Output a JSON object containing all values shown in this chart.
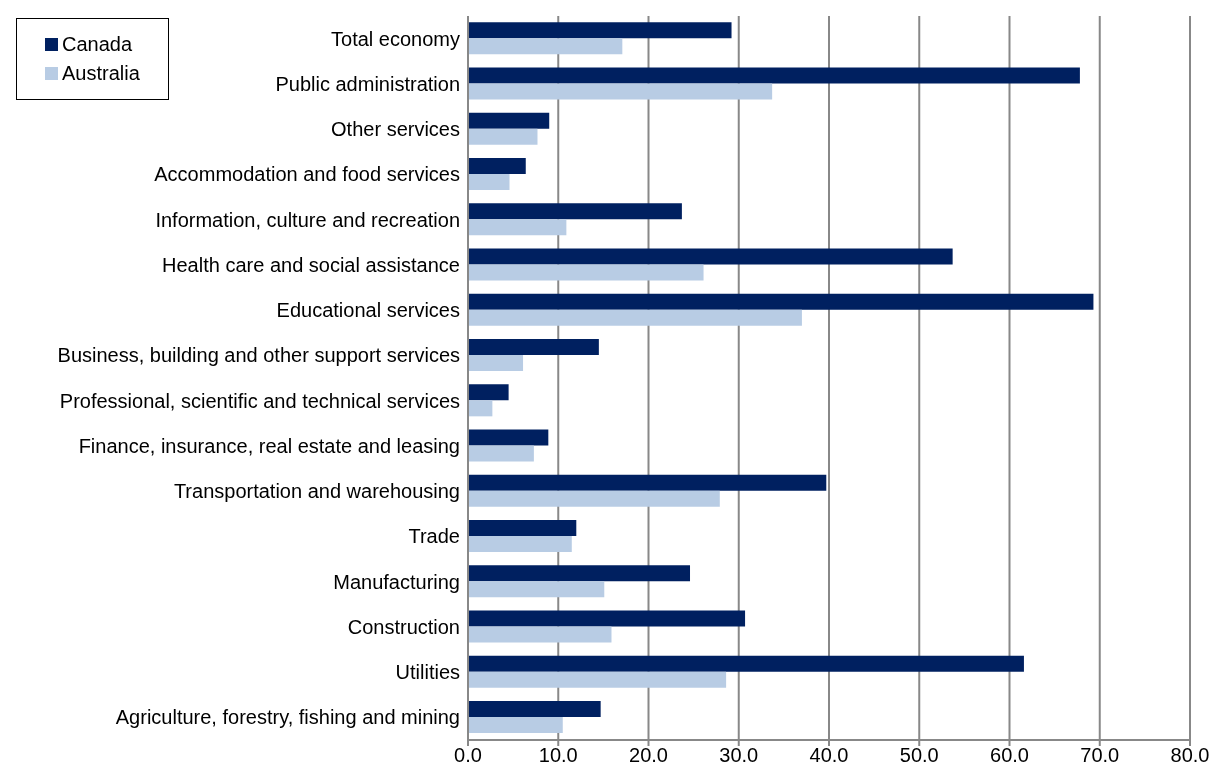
{
  "chart_data": {
    "type": "bar",
    "orientation": "horizontal",
    "categories": [
      "Total economy",
      "Public administration",
      "Other services",
      "Accommodation and food services",
      "Information, culture and recreation",
      "Health care and social assistance",
      "Educational services",
      "Business, building and other support services",
      "Professional, scientific and technical services",
      "Finance, insurance, real estate and leasing",
      "Transportation and warehousing",
      "Trade",
      "Manufacturing",
      "Construction",
      "Utilities",
      "Agriculture, forestry, fishing and mining"
    ],
    "series": [
      {
        "name": "Canada",
        "color": "#002060",
        "values": [
          29.2,
          67.8,
          9.0,
          6.4,
          23.7,
          53.7,
          69.3,
          14.5,
          4.5,
          8.9,
          39.7,
          12.0,
          24.6,
          30.7,
          61.6,
          14.7
        ]
      },
      {
        "name": "Australia",
        "color": "#b8cce4",
        "values": [
          17.1,
          33.7,
          7.7,
          4.6,
          10.9,
          26.1,
          37.0,
          6.1,
          2.7,
          7.3,
          27.9,
          11.5,
          15.1,
          15.9,
          28.6,
          10.5
        ]
      }
    ],
    "xlim": [
      0,
      80
    ],
    "xticks": [
      {
        "value": 0,
        "label": "0.0"
      },
      {
        "value": 10,
        "label": "10.0"
      },
      {
        "value": 20,
        "label": "20.0"
      },
      {
        "value": 30,
        "label": "30.0"
      },
      {
        "value": 40,
        "label": "40.0"
      },
      {
        "value": 50,
        "label": "50.0"
      },
      {
        "value": 60,
        "label": "60.0"
      },
      {
        "value": 70,
        "label": "70.0"
      },
      {
        "value": 80,
        "label": "80.0"
      }
    ],
    "grid": "x",
    "legend": "top left"
  }
}
